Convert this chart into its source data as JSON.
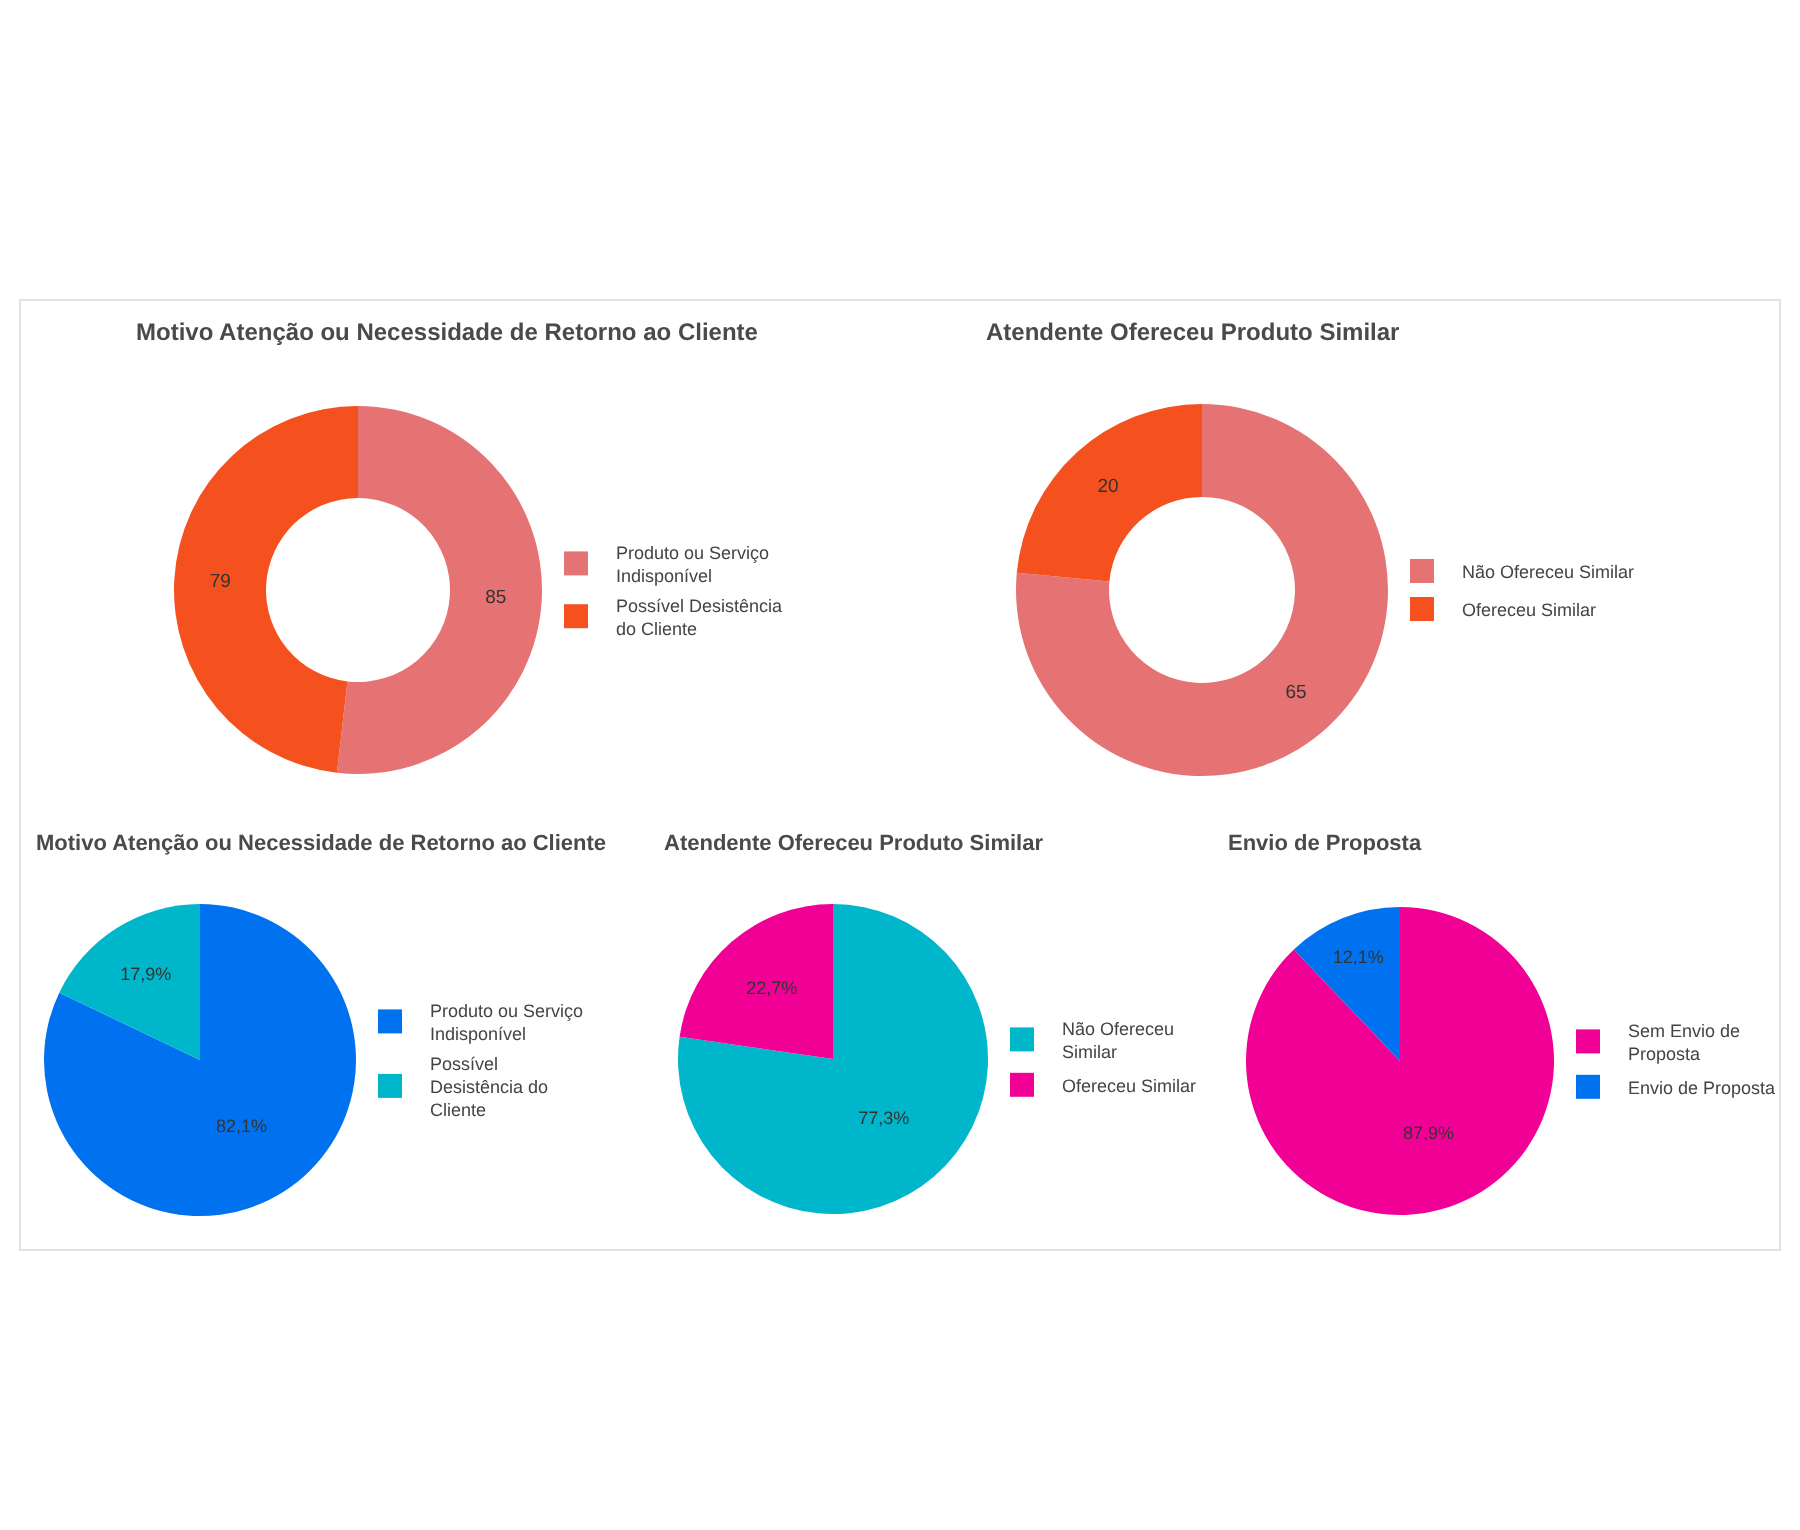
{
  "chart_data": [
    {
      "type": "donut",
      "title": "Motivo Atenção ou Necessidade de Retorno ao Cliente",
      "categories": [
        "Produto ou Serviço Indisponível",
        "Possível Desistência do Cliente"
      ],
      "values": [
        85,
        79
      ],
      "colors": [
        "#e57373",
        "#f4511e"
      ],
      "data_labels": true,
      "legend": "right"
    },
    {
      "type": "donut",
      "title": "Atendente Ofereceu Produto Similar",
      "categories": [
        "Não Ofereceu Similar",
        "Ofereceu Similar"
      ],
      "values": [
        65,
        20
      ],
      "colors": [
        "#e57373",
        "#f4511e"
      ],
      "data_labels": true,
      "legend": "right"
    },
    {
      "type": "pie",
      "title": "Motivo Atenção ou Necessidade de Retorno ao Cliente",
      "categories": [
        "Produto ou Serviço Indisponível",
        "Possível Desistência do Cliente"
      ],
      "values": [
        82.1,
        17.9
      ],
      "colors": [
        "#0072f0",
        "#00b6cb"
      ],
      "value_labels": [
        "82,1%",
        "17,9%"
      ],
      "legend": "right"
    },
    {
      "type": "pie",
      "title": "Atendente Ofereceu Produto Similar",
      "categories": [
        "Não Ofereceu Similar",
        "Ofereceu Similar"
      ],
      "values": [
        77.3,
        22.7
      ],
      "colors": [
        "#00b6cb",
        "#f10096"
      ],
      "value_labels": [
        "77,3%",
        "22,7%"
      ],
      "legend": "right"
    },
    {
      "type": "pie",
      "title": "Envio de Proposta",
      "categories": [
        "Sem Envio de Proposta",
        "Envio de Proposta"
      ],
      "values": [
        87.9,
        12.1
      ],
      "colors": [
        "#f10096",
        "#0072f0"
      ],
      "value_labels": [
        "87,9%",
        "12,1%"
      ],
      "legend": "right"
    }
  ]
}
